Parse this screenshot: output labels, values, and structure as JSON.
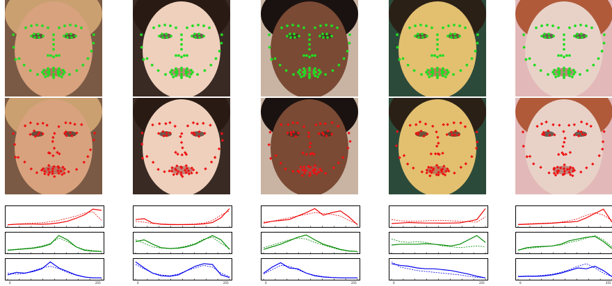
{
  "axis": {
    "x_min_label": "0",
    "x_max_label": "255"
  },
  "colors": {
    "gt_landmark": "#22dd22",
    "pred_landmark": "#ee1111",
    "channel_r": "#ee0000",
    "channel_g": "#008800",
    "channel_b": "#0000ee"
  },
  "columns": [
    {
      "skin": "#d8a27e",
      "hair": "#caa070",
      "bg": "#7a5a44",
      "hist": {
        "r": {
          "solid": [
            0.05,
            0.08,
            0.09,
            0.09,
            0.08,
            0.1,
            0.16,
            0.25,
            0.42,
            0.62,
            0.95,
            0.88
          ],
          "dashed": [
            0.06,
            0.09,
            0.12,
            0.14,
            0.17,
            0.22,
            0.3,
            0.42,
            0.55,
            0.72,
            0.8,
            0.3
          ]
        },
        "g": {
          "solid": [
            0.1,
            0.14,
            0.18,
            0.22,
            0.3,
            0.45,
            0.95,
            0.7,
            0.3,
            0.1,
            0.05,
            0.03
          ],
          "dashed": [
            0.12,
            0.16,
            0.2,
            0.25,
            0.35,
            0.5,
            0.8,
            0.6,
            0.3,
            0.14,
            0.08,
            0.04
          ]
        },
        "b": {
          "solid": [
            0.2,
            0.35,
            0.3,
            0.4,
            0.55,
            0.95,
            0.6,
            0.4,
            0.2,
            0.08,
            0.03,
            0.03
          ],
          "dashed": [
            0.3,
            0.25,
            0.28,
            0.45,
            0.6,
            0.7,
            0.55,
            0.35,
            0.18,
            0.08,
            0.04,
            0.03
          ]
        }
      }
    },
    {
      "skin": "#eed0bc",
      "hair": "#2a1a14",
      "bg": "#3a2a24",
      "hist": {
        "r": {
          "solid": [
            0.35,
            0.4,
            0.15,
            0.08,
            0.06,
            0.06,
            0.06,
            0.07,
            0.1,
            0.18,
            0.45,
            0.98
          ],
          "dashed": [
            0.25,
            0.2,
            0.12,
            0.1,
            0.08,
            0.07,
            0.08,
            0.1,
            0.15,
            0.3,
            0.6,
            0.85
          ]
        },
        "g": {
          "solid": [
            0.6,
            0.7,
            0.45,
            0.25,
            0.2,
            0.22,
            0.3,
            0.45,
            0.7,
            0.95,
            0.7,
            0.15
          ],
          "dashed": [
            0.7,
            0.5,
            0.3,
            0.22,
            0.2,
            0.25,
            0.35,
            0.5,
            0.75,
            0.85,
            0.5,
            0.2
          ]
        },
        "b": {
          "solid": [
            0.95,
            0.6,
            0.3,
            0.15,
            0.12,
            0.2,
            0.45,
            0.7,
            0.85,
            0.8,
            0.2,
            0.05
          ],
          "dashed": [
            0.8,
            0.55,
            0.3,
            0.2,
            0.15,
            0.25,
            0.45,
            0.6,
            0.75,
            0.65,
            0.3,
            0.1
          ]
        }
      }
    },
    {
      "skin": "#7a4a34",
      "hair": "#1a1210",
      "bg": "#c9b4a4",
      "hist": {
        "r": {
          "solid": [
            0.15,
            0.25,
            0.3,
            0.35,
            0.55,
            0.75,
            0.98,
            0.6,
            0.75,
            0.85,
            0.5,
            0.05
          ],
          "dashed": [
            0.2,
            0.25,
            0.35,
            0.45,
            0.55,
            0.65,
            0.75,
            0.7,
            0.65,
            0.55,
            0.3,
            0.1
          ]
        },
        "g": {
          "solid": [
            0.15,
            0.3,
            0.45,
            0.65,
            0.85,
            0.98,
            0.7,
            0.45,
            0.3,
            0.15,
            0.06,
            0.03
          ],
          "dashed": [
            0.25,
            0.4,
            0.55,
            0.7,
            0.8,
            0.75,
            0.55,
            0.4,
            0.25,
            0.12,
            0.05,
            0.03
          ]
        },
        "b": {
          "solid": [
            0.3,
            0.65,
            0.9,
            0.6,
            0.55,
            0.3,
            0.15,
            0.08,
            0.05,
            0.03,
            0.03,
            0.03
          ],
          "dashed": [
            0.25,
            0.5,
            0.75,
            0.7,
            0.5,
            0.3,
            0.18,
            0.1,
            0.06,
            0.04,
            0.03,
            0.03
          ]
        }
      }
    },
    {
      "skin": "#e2c070",
      "hair": "#2a2016",
      "bg": "#2c4a3a",
      "hist": {
        "r": {
          "solid": [
            0.12,
            0.15,
            0.18,
            0.16,
            0.15,
            0.15,
            0.14,
            0.15,
            0.16,
            0.25,
            0.35,
            0.98
          ],
          "dashed": [
            0.35,
            0.28,
            0.25,
            0.25,
            0.28,
            0.3,
            0.3,
            0.28,
            0.25,
            0.22,
            0.2,
            0.5
          ]
        },
        "g": {
          "solid": [
            0.4,
            0.45,
            0.45,
            0.45,
            0.48,
            0.45,
            0.4,
            0.35,
            0.45,
            0.7,
            0.95,
            0.55
          ],
          "dashed": [
            0.75,
            0.6,
            0.55,
            0.6,
            0.55,
            0.45,
            0.35,
            0.3,
            0.25,
            0.3,
            0.35,
            0.3
          ]
        },
        "b": {
          "solid": [
            0.85,
            0.75,
            0.7,
            0.6,
            0.55,
            0.55,
            0.5,
            0.45,
            0.35,
            0.25,
            0.12,
            0.03
          ],
          "dashed": [
            0.95,
            0.65,
            0.55,
            0.45,
            0.4,
            0.35,
            0.3,
            0.25,
            0.2,
            0.12,
            0.06,
            0.03
          ]
        }
      }
    },
    {
      "skin": "#e8d2c8",
      "hair": "#b05a3a",
      "bg": "#e2b8b8",
      "hist": {
        "r": {
          "solid": [
            0.06,
            0.08,
            0.1,
            0.12,
            0.14,
            0.18,
            0.2,
            0.25,
            0.45,
            0.7,
            0.95,
            0.2
          ],
          "dashed": [
            0.08,
            0.1,
            0.12,
            0.14,
            0.16,
            0.2,
            0.28,
            0.4,
            0.6,
            0.75,
            0.6,
            0.3
          ]
        },
        "g": {
          "solid": [
            0.1,
            0.25,
            0.3,
            0.32,
            0.35,
            0.45,
            0.65,
            0.75,
            0.85,
            0.9,
            0.6,
            0.2
          ],
          "dashed": [
            0.12,
            0.2,
            0.25,
            0.3,
            0.35,
            0.4,
            0.55,
            0.65,
            0.8,
            0.95,
            0.7,
            0.3
          ]
        },
        "b": {
          "solid": [
            0.1,
            0.12,
            0.12,
            0.14,
            0.2,
            0.3,
            0.45,
            0.6,
            0.55,
            0.7,
            0.45,
            0.1
          ],
          "dashed": [
            0.12,
            0.14,
            0.14,
            0.18,
            0.24,
            0.35,
            0.5,
            0.7,
            0.85,
            0.6,
            0.3,
            0.1
          ]
        }
      }
    }
  ]
}
